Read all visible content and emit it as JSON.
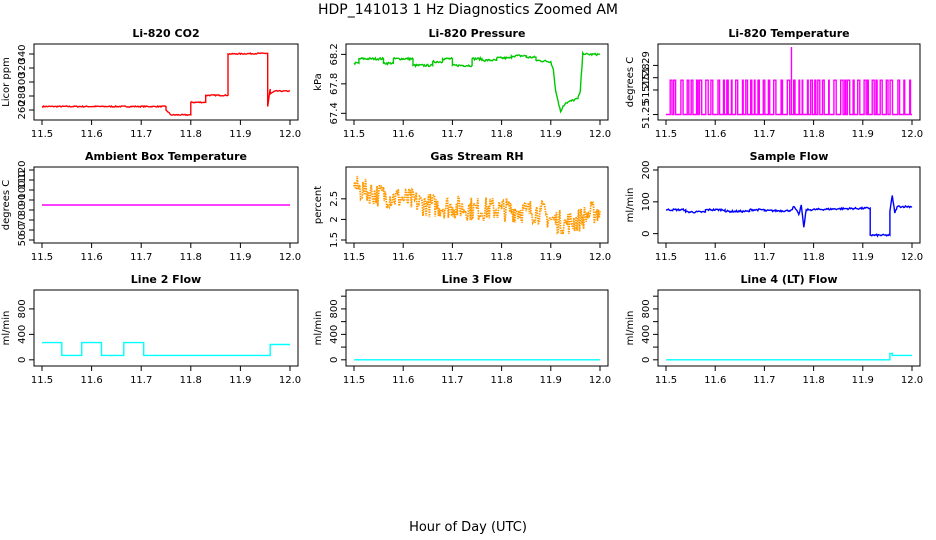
{
  "figure": {
    "title": "HDP_141013  1 Hz Diagnostics Zoomed AM",
    "xlabel": "Hour of Day (UTC)"
  },
  "chart_data": [
    {
      "id": "p1",
      "type": "line",
      "title": "Li-820 CO2",
      "ylabel": "Licor ppm",
      "color": "#ff0000",
      "noise": 0.8,
      "xlim": [
        11.5,
        12.0
      ],
      "ylim": [
        250,
        350
      ],
      "xticks": [
        "11.5",
        "11.6",
        "11.7",
        "11.8",
        "11.9",
        "12.0"
      ],
      "yticks": [
        260,
        280,
        300,
        320,
        340
      ],
      "x": [
        11.5,
        11.75,
        11.75,
        11.76,
        11.76,
        11.8,
        11.8,
        11.83,
        11.83,
        11.875,
        11.875,
        11.955,
        11.955,
        11.96,
        11.96,
        11.97,
        12.0
      ],
      "y": [
        265,
        265,
        260,
        253,
        253,
        253,
        271,
        271,
        281,
        281,
        340,
        341,
        265,
        290,
        283,
        287,
        287
      ]
    },
    {
      "id": "p2",
      "type": "line",
      "title": "Li-820 Pressure",
      "ylabel": "kPa",
      "color": "#00c800",
      "noise": 0.015,
      "xlim": [
        11.5,
        12.0
      ],
      "ylim": [
        67.35,
        68.3
      ],
      "xticks": [
        "11.5",
        "11.6",
        "11.7",
        "11.8",
        "11.9",
        "12.0"
      ],
      "yticks": [
        67.4,
        67.8,
        68.2
      ],
      "yticklabels": [
        "67.4",
        "67.8",
        "68.2"
      ],
      "x": [
        11.5,
        11.51,
        11.51,
        11.56,
        11.56,
        11.58,
        11.58,
        11.62,
        11.62,
        11.66,
        11.66,
        11.68,
        11.68,
        11.7,
        11.7,
        11.74,
        11.74,
        11.76,
        11.76,
        11.79,
        11.79,
        11.82,
        11.82,
        11.85,
        11.85,
        11.87,
        11.87,
        11.9,
        11.905,
        11.91,
        11.92,
        11.925,
        11.93,
        11.955,
        11.96,
        11.965,
        11.97,
        12.0
      ],
      "y": [
        68.08,
        68.08,
        68.14,
        68.14,
        68.08,
        68.08,
        68.14,
        68.14,
        68.05,
        68.05,
        68.1,
        68.1,
        68.14,
        68.14,
        68.05,
        68.05,
        68.14,
        68.14,
        68.12,
        68.12,
        68.15,
        68.15,
        68.18,
        68.18,
        68.16,
        68.16,
        68.12,
        68.1,
        68.0,
        67.7,
        67.42,
        67.5,
        67.54,
        67.6,
        67.7,
        68.22,
        68.2,
        68.2
      ]
    },
    {
      "id": "p3",
      "type": "line",
      "title": "Li-820 Temperature",
      "ylabel": "degrees C",
      "color": "#ff00ff",
      "noise": 0,
      "style": "spikes",
      "xlim": [
        11.5,
        12.0
      ],
      "ylim": [
        51.248,
        51.305
      ],
      "xticks": [
        "11.5",
        "11.6",
        "11.7",
        "11.8",
        "11.9",
        "12.0"
      ],
      "yticks": [
        51.25,
        51.27,
        51.28,
        51.29
      ],
      "yticklabels": [
        "51.25",
        "51.27",
        "51.28",
        "51.29"
      ],
      "baseline": 51.25,
      "level": 51.278,
      "peak_x": 11.755,
      "peak_y": 51.305
    },
    {
      "id": "p4",
      "type": "line",
      "title": "Ambient Box Temperature",
      "ylabel": "degrees C",
      "color": "#ff00ff",
      "noise": 0,
      "xlim": [
        11.5,
        12.0
      ],
      "ylim": [
        50,
        120
      ],
      "xticks": [
        "11.5",
        "11.6",
        "11.7",
        "11.8",
        "11.9",
        "12.0"
      ],
      "yticks": [
        50,
        60,
        70,
        80,
        90,
        100,
        110,
        120
      ],
      "x": [
        11.5,
        12.0
      ],
      "y": [
        85,
        85
      ]
    },
    {
      "id": "p5",
      "type": "line",
      "title": "Gas Stream RH",
      "ylabel": "percent",
      "color": "#ff9900",
      "noise": 0.3,
      "dotted": true,
      "xlim": [
        11.5,
        12.0
      ],
      "ylim": [
        1.5,
        3.2
      ],
      "xticks": [
        "11.5",
        "11.6",
        "11.7",
        "11.8",
        "11.9",
        "12.0"
      ],
      "yticks": [
        1.5,
        2.0,
        2.5
      ],
      "yticklabels": [
        "1.5",
        "2",
        "2.5"
      ],
      "x": [
        11.5,
        11.52,
        11.55,
        11.6,
        11.65,
        11.7,
        11.75,
        11.8,
        11.85,
        11.88,
        11.9,
        11.93,
        11.96,
        11.98,
        12.0
      ],
      "y": [
        2.8,
        2.7,
        2.6,
        2.5,
        2.35,
        2.3,
        2.25,
        2.25,
        2.2,
        2.2,
        2.0,
        1.9,
        2.0,
        2.15,
        2.2
      ]
    },
    {
      "id": "p6",
      "type": "line",
      "title": "Sample Flow",
      "ylabel": "ml/min",
      "color": "#0000ff",
      "noise": 3,
      "xlim": [
        11.5,
        12.0
      ],
      "ylim": [
        -20,
        200
      ],
      "xticks": [
        "11.5",
        "11.6",
        "11.7",
        "11.8",
        "11.9",
        "12.0"
      ],
      "yticks": [
        0,
        100,
        200
      ],
      "x": [
        11.5,
        11.54,
        11.54,
        11.58,
        11.58,
        11.62,
        11.62,
        11.67,
        11.67,
        11.7,
        11.7,
        11.75,
        11.755,
        11.76,
        11.77,
        11.775,
        11.78,
        11.785,
        11.79,
        11.85,
        11.915,
        11.915,
        11.955,
        11.955,
        11.96,
        11.965,
        11.97,
        12.0
      ],
      "y": [
        75,
        75,
        68,
        68,
        75,
        75,
        70,
        70,
        75,
        75,
        72,
        72,
        75,
        85,
        60,
        90,
        20,
        75,
        75,
        78,
        80,
        -5,
        -5,
        70,
        120,
        65,
        85,
        85
      ]
    },
    {
      "id": "p7",
      "type": "line",
      "title": "Line 2 Flow",
      "ylabel": "ml/min",
      "color": "#00ffff",
      "noise": 0,
      "xlim": [
        11.5,
        12.0
      ],
      "ylim": [
        -50,
        1050
      ],
      "xticks": [
        "11.5",
        "11.6",
        "11.7",
        "11.8",
        "11.9",
        "12.0"
      ],
      "yticks": [
        0,
        200,
        400,
        600,
        800,
        1000
      ],
      "yticklabels": [
        "0",
        "400",
        "800"
      ],
      "ytickvals": [
        0,
        400,
        800
      ],
      "x": [
        11.5,
        11.54,
        11.54,
        11.58,
        11.58,
        11.62,
        11.62,
        11.665,
        11.665,
        11.705,
        11.705,
        11.96,
        11.96,
        12.0
      ],
      "y": [
        270,
        270,
        70,
        70,
        270,
        270,
        70,
        70,
        270,
        270,
        70,
        70,
        240,
        240
      ]
    },
    {
      "id": "p8",
      "type": "line",
      "title": "Line 3 Flow",
      "ylabel": "ml/min",
      "color": "#00ffff",
      "noise": 0,
      "xlim": [
        11.5,
        12.0
      ],
      "ylim": [
        -50,
        1050
      ],
      "xticks": [
        "11.5",
        "11.6",
        "11.7",
        "11.8",
        "11.9",
        "12.0"
      ],
      "yticks": [
        0,
        400,
        800
      ],
      "yticklabels": [
        "0",
        "400",
        "800"
      ],
      "ytickvals": [
        0,
        200,
        400,
        600,
        800,
        1000
      ],
      "x": [
        11.5,
        12.0
      ],
      "y": [
        0,
        0
      ]
    },
    {
      "id": "p9",
      "type": "line",
      "title": "Line 4 (LT) Flow",
      "ylabel": "ml/min",
      "color": "#00ffff",
      "noise": 0,
      "xlim": [
        11.5,
        12.0
      ],
      "ylim": [
        -50,
        1050
      ],
      "xticks": [
        "11.5",
        "11.6",
        "11.7",
        "11.8",
        "11.9",
        "12.0"
      ],
      "yticks": [
        0,
        400,
        800
      ],
      "yticklabels": [
        "0",
        "400",
        "800"
      ],
      "ytickvals": [
        0,
        200,
        400,
        600,
        800,
        1000
      ],
      "x": [
        11.5,
        11.955,
        11.955,
        11.96,
        11.96,
        12.0
      ],
      "y": [
        0,
        0,
        100,
        100,
        70,
        70
      ]
    }
  ]
}
